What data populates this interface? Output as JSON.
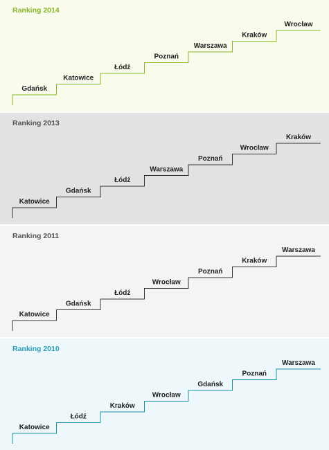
{
  "panels": [
    {
      "title": "Ranking 2014",
      "colors": {
        "background": "#f9fbed",
        "title": "#8ab528",
        "line": "#8ab528"
      },
      "cities": [
        "Gdańsk",
        "Katowice",
        "Łódź",
        "Poznań",
        "Warszawa",
        "Kraków",
        "Wrocław"
      ]
    },
    {
      "title": "Ranking 2013",
      "colors": {
        "background": "#e2e2e2",
        "title": "#555555",
        "line": "#333333"
      },
      "cities": [
        "Katowice",
        "Gdańsk",
        "Łódź",
        "Warszawa",
        "Poznań",
        "Wrocław",
        "Kraków"
      ]
    },
    {
      "title": "Ranking 2011",
      "colors": {
        "background": "#f4f4f4",
        "title": "#555555",
        "line": "#333333"
      },
      "cities": [
        "Katowice",
        "Gdańsk",
        "Łódź",
        "Wrocław",
        "Poznań",
        "Kraków",
        "Warszawa"
      ]
    },
    {
      "title": "Ranking 2010",
      "colors": {
        "background": "#eef8fb",
        "title": "#2aa0b8",
        "line": "#1e8fa3"
      },
      "cities": [
        "Katowice",
        "Łódź",
        "Kraków",
        "Wrocław",
        "Gdańsk",
        "Poznań",
        "Warszawa"
      ]
    }
  ]
}
